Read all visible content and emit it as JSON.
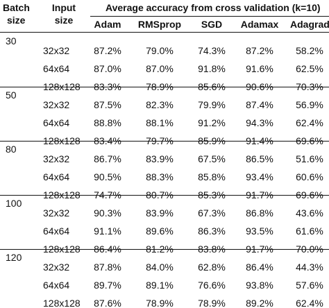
{
  "header": {
    "batch_line1": "Batch",
    "batch_line2": "size",
    "input_line1": "Input",
    "input_line2": "size",
    "group_title": "Average accuracy from cross validation (k=10)",
    "optimizers": [
      "Adam",
      "RMSprop",
      "SGD",
      "Adamax",
      "Adagrad"
    ]
  },
  "groups": [
    {
      "batch": "30",
      "rows": [
        {
          "size": "32x32",
          "values": [
            "87.2%",
            "79.0%",
            "74.3%",
            "87.2%",
            "58.2%"
          ]
        },
        {
          "size": "64x64",
          "values": [
            "87.0%",
            "87.0%",
            "91.8%",
            "91.6%",
            "62.5%"
          ]
        },
        {
          "size": "128x128",
          "values": [
            "83.3%",
            "78.9%",
            "85.6%",
            "90.6%",
            "70.3%"
          ]
        }
      ]
    },
    {
      "batch": "50",
      "rows": [
        {
          "size": "32x32",
          "values": [
            "87.5%",
            "82.3%",
            "79.9%",
            "87.4%",
            "56.9%"
          ]
        },
        {
          "size": "64x64",
          "values": [
            "88.8%",
            "88.1%",
            "91.2%",
            "94.3%",
            "62.4%"
          ]
        },
        {
          "size": "128x128",
          "values": [
            "83.4%",
            "79.7%",
            "85.9%",
            "91.4%",
            "69.6%"
          ]
        }
      ]
    },
    {
      "batch": "80",
      "rows": [
        {
          "size": "32x32",
          "values": [
            "86.7%",
            "83.9%",
            "67.5%",
            "86.5%",
            "51.6%"
          ]
        },
        {
          "size": "64x64",
          "values": [
            "90.5%",
            "88.3%",
            "85.8%",
            "93.4%",
            "60.6%"
          ]
        },
        {
          "size": "128x128",
          "values": [
            "74.7%",
            "80.7%",
            "85.3%",
            "91.7%",
            "69.6%"
          ]
        }
      ]
    },
    {
      "batch": "100",
      "rows": [
        {
          "size": "32x32",
          "values": [
            "90.3%",
            "83.9%",
            "67.3%",
            "86.8%",
            "43.6%"
          ]
        },
        {
          "size": "64x64",
          "values": [
            "91.1%",
            "89.6%",
            "86.3%",
            "93.5%",
            "61.6%"
          ]
        },
        {
          "size": "128x128",
          "values": [
            "86.4%",
            "81.2%",
            "83.8%",
            "91.7%",
            "70.0%"
          ]
        }
      ]
    },
    {
      "batch": "120",
      "rows": [
        {
          "size": "32x32",
          "values": [
            "87.8%",
            "84.0%",
            "62.8%",
            "86.4%",
            "44.3%"
          ]
        },
        {
          "size": "64x64",
          "values": [
            "89.7%",
            "89.1%",
            "76.6%",
            "93.8%",
            "57.6%"
          ]
        },
        {
          "size": "128x128",
          "values": [
            "87.6%",
            "78.9%",
            "78.9%",
            "89.2%",
            "62.4%"
          ]
        }
      ]
    }
  ]
}
